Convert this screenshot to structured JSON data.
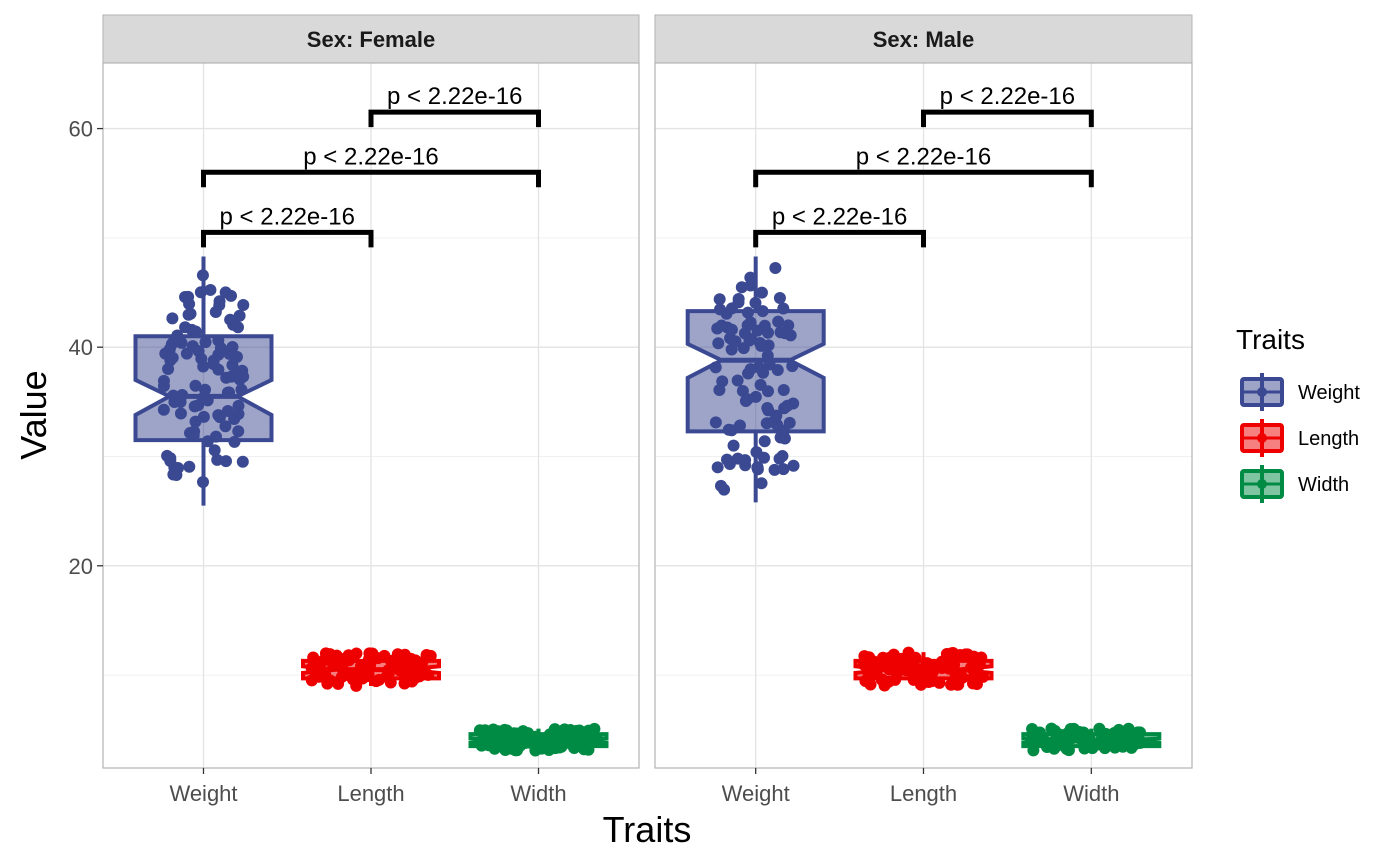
{
  "chart_data": {
    "type": "boxplot",
    "xlabel": "Traits",
    "ylabel": "Value",
    "categories": [
      "Weight",
      "Length",
      "Width"
    ],
    "ylim": [
      1.5,
      66
    ],
    "y_ticks": [
      20,
      40,
      60
    ],
    "grid": true,
    "notched": true,
    "jitter_points": true,
    "legend": {
      "title": "Traits",
      "position": "right",
      "entries": [
        "Weight",
        "Length",
        "Width"
      ]
    },
    "colors": {
      "Weight": "#3b4992",
      "Length": "#ee0000",
      "Width": "#008b45"
    },
    "panels": [
      {
        "label": "Sex: Female",
        "boxes": [
          {
            "category": "Weight",
            "min": 25.5,
            "q1": 31.5,
            "median": 35.5,
            "q3": 41,
            "max": 48.3,
            "notch_low": 33.8,
            "notch_high": 37
          },
          {
            "category": "Length",
            "min": 9,
            "q1": 9.7,
            "median": 10.5,
            "q3": 11.3,
            "max": 12.1,
            "notch_low": 10.2,
            "notch_high": 10.8
          },
          {
            "category": "Width",
            "min": 3.1,
            "q1": 3.5,
            "median": 4,
            "q3": 4.6,
            "max": 5.1,
            "notch_low": 3.8,
            "notch_high": 4.2
          }
        ],
        "comparisons": [
          {
            "from": "Weight",
            "to": "Length",
            "y": 50.5,
            "label": "p < 2.22e-16"
          },
          {
            "from": "Weight",
            "to": "Width",
            "y": 56,
            "label": "p < 2.22e-16"
          },
          {
            "from": "Length",
            "to": "Width",
            "y": 61.5,
            "label": "p < 2.22e-16"
          }
        ]
      },
      {
        "label": "Sex: Male",
        "boxes": [
          {
            "category": "Weight",
            "min": 25.8,
            "q1": 32.3,
            "median": 38.8,
            "q3": 43.3,
            "max": 48.3,
            "notch_low": 37.2,
            "notch_high": 40.3
          },
          {
            "category": "Length",
            "min": 9,
            "q1": 9.7,
            "median": 10.5,
            "q3": 11.3,
            "max": 12.1,
            "notch_low": 10.2,
            "notch_high": 10.8
          },
          {
            "category": "Width",
            "min": 3.1,
            "q1": 3.5,
            "median": 4,
            "q3": 4.6,
            "max": 5.1,
            "notch_low": 3.8,
            "notch_high": 4.2
          }
        ],
        "comparisons": [
          {
            "from": "Weight",
            "to": "Length",
            "y": 50.5,
            "label": "p < 2.22e-16"
          },
          {
            "from": "Weight",
            "to": "Width",
            "y": 56,
            "label": "p < 2.22e-16"
          },
          {
            "from": "Length",
            "to": "Width",
            "y": 61.5,
            "label": "p < 2.22e-16"
          }
        ]
      }
    ]
  }
}
